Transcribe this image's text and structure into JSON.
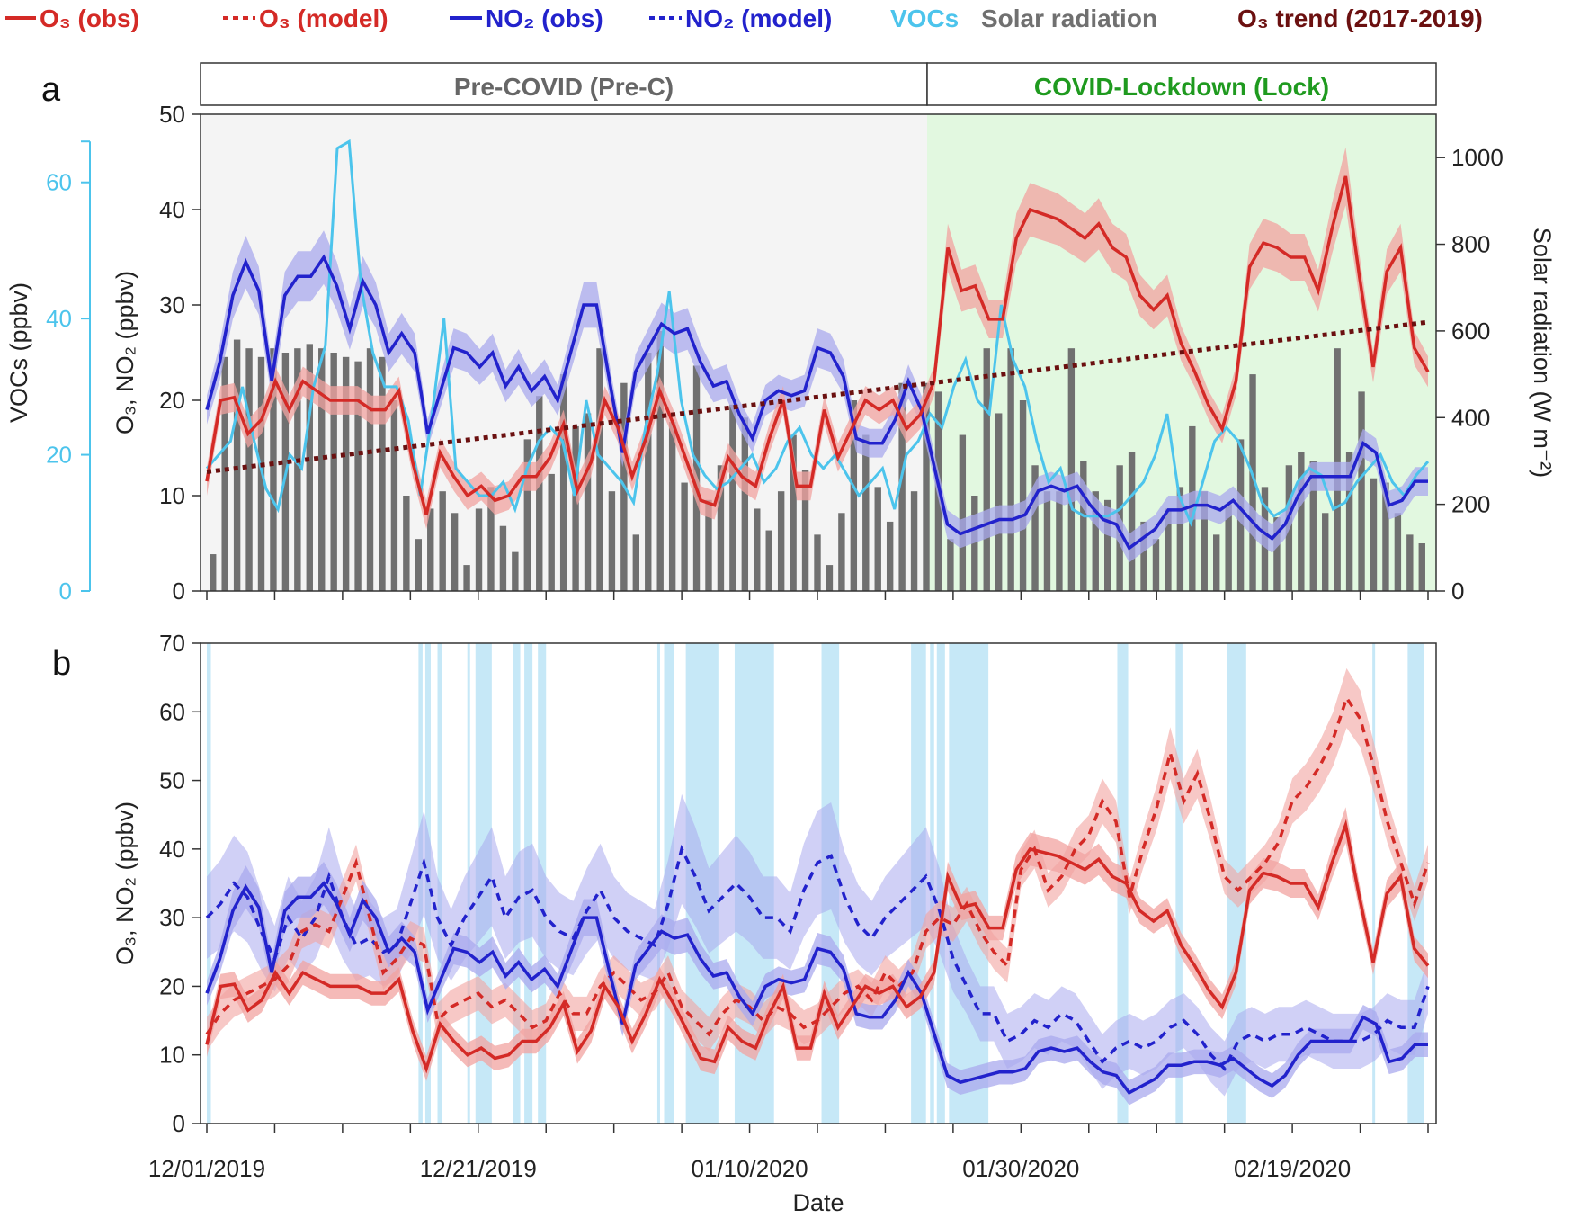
{
  "legend": {
    "o3_obs": "O₃ (obs)",
    "o3_model": "O₃ (model)",
    "no2_obs": "NO₂ (obs)",
    "no2_model": "NO₂ (model)",
    "vocs": "VOCs",
    "solar": "Solar radiation",
    "o3_trend": "O₃ trend (2017-2019)"
  },
  "colors": {
    "o3": "#d42a26",
    "o3_band": "#f2a3a0",
    "no2": "#2222cc",
    "no2_band": "#a9a9ee",
    "vocs": "#4cc4ec",
    "solar": "#707070",
    "trend": "#6b1010",
    "pre_bg": "#f4f4f4",
    "lock_bg": "#e2f8e0",
    "lock_text": "#1f9a1f",
    "pre_text": "#666666",
    "rain": "#c6e8f7"
  },
  "chart_data": [
    {
      "panel": "a",
      "type": "line",
      "periods": [
        {
          "label": "Pre-COVID (Pre-C)",
          "start_day": 0,
          "end_day": 53
        },
        {
          "label": "COVID-Lockdown (Lock)",
          "start_day": 53,
          "end_day": 90
        }
      ],
      "ylabel_left": "O₃, NO₂ (ppbv)",
      "ylim_left": [
        0,
        50
      ],
      "yticks_left": [
        0,
        10,
        20,
        30,
        40,
        50
      ],
      "ylabel_vocs": "VOCs (ppbv)",
      "ylim_vocs": [
        0,
        70
      ],
      "yticks_vocs": [
        0,
        20,
        40,
        60
      ],
      "ylabel_right": "Solar radiation (W m⁻²)",
      "ylim_right": [
        0,
        1100
      ],
      "yticks_right": [
        0,
        200,
        400,
        600,
        800,
        1000
      ],
      "o3_trend": {
        "start": [
          0,
          12.5
        ],
        "end": [
          90,
          28.2
        ]
      },
      "series": [
        {
          "name": "O3 (obs)",
          "values": [
            11.5,
            20,
            20.3,
            16.5,
            18,
            22,
            19,
            22,
            21,
            20,
            20,
            20,
            19,
            19,
            21,
            13.5,
            8,
            14.5,
            12,
            10,
            11,
            9.5,
            10,
            12,
            12,
            14,
            17.5,
            10.5,
            13.5,
            20,
            17,
            12,
            16,
            21,
            17.5,
            13.5,
            9.5,
            9,
            14,
            12,
            11,
            16,
            20,
            11,
            11,
            19,
            14,
            17,
            20,
            19,
            20,
            17,
            18.5,
            22,
            36,
            31.5,
            32,
            28.5,
            28.5,
            37,
            40,
            39.5,
            39,
            38,
            37,
            38.5,
            36,
            35,
            31,
            29.5,
            31,
            26,
            23,
            19.5,
            17,
            22,
            34,
            36.5,
            36,
            35,
            35,
            31.5,
            38,
            43.5,
            33,
            23.5,
            33.5,
            36,
            25.5,
            23
          ]
        },
        {
          "name": "NO2 (obs)",
          "values": [
            19,
            24,
            31,
            34.5,
            31.5,
            22,
            31,
            33,
            33,
            35,
            32,
            27.5,
            32.5,
            30,
            25,
            27,
            25,
            16.5,
            21,
            25.5,
            25,
            23.5,
            25,
            21.5,
            23.5,
            21,
            22.5,
            20,
            25,
            30,
            30,
            22,
            14.5,
            23,
            25.5,
            28,
            27,
            27.5,
            24,
            21.5,
            22,
            18.5,
            16,
            20,
            21,
            20.5,
            21,
            25.5,
            25,
            22.5,
            16,
            15.5,
            15.5,
            18,
            22,
            19,
            13,
            7,
            6,
            6.5,
            7,
            7.5,
            7.5,
            8,
            10.5,
            11,
            10.5,
            11,
            9,
            7.5,
            7,
            4.5,
            5.5,
            6.5,
            8.5,
            8.5,
            9,
            9,
            8.5,
            9.5,
            8,
            6.5,
            5.5,
            7,
            10,
            12,
            12,
            12,
            12,
            15.5,
            14.5,
            9,
            9.5,
            11.5,
            11.5
          ]
        },
        {
          "name": "VOCs",
          "values": [
            18,
            20,
            22,
            30,
            22,
            15,
            12,
            20,
            18,
            30,
            36,
            65,
            66,
            45,
            35,
            30,
            30,
            25,
            14,
            26,
            40,
            18,
            16,
            14,
            14,
            16,
            12,
            18,
            22,
            24,
            22,
            14,
            28,
            20,
            18,
            16,
            13,
            24,
            32,
            44,
            28,
            20,
            17,
            15,
            16,
            18,
            20,
            16,
            18,
            22,
            24,
            20,
            18,
            20,
            17,
            14,
            16,
            18,
            12,
            20,
            22,
            26,
            24,
            30,
            34,
            28,
            26,
            42,
            34,
            30,
            22,
            16,
            18,
            12,
            11,
            11,
            11,
            12,
            14,
            16,
            20,
            26,
            14,
            10,
            16,
            22,
            24,
            22,
            18,
            13,
            11,
            12,
            16,
            18,
            17,
            12,
            13,
            16,
            18,
            20,
            16,
            14,
            17,
            19
          ]
        },
        {
          "name": "Solar radiation",
          "values": [
            85,
            540,
            580,
            560,
            540,
            560,
            550,
            560,
            570,
            560,
            550,
            540,
            530,
            560,
            540,
            440,
            220,
            120,
            190,
            230,
            180,
            60,
            190,
            240,
            150,
            90,
            350,
            450,
            270,
            500,
            380,
            410,
            560,
            230,
            480,
            130,
            550,
            600,
            390,
            250,
            520,
            210,
            290,
            430,
            400,
            190,
            140,
            230,
            360,
            280,
            130,
            60,
            180,
            440,
            360,
            240,
            160,
            480,
            230,
            480,
            460,
            120,
            360,
            220,
            560,
            410,
            560,
            440,
            290,
            230,
            230,
            560,
            300,
            230,
            210,
            290,
            320,
            160,
            120,
            190,
            240,
            380,
            230,
            130,
            200,
            350,
            500,
            240,
            170,
            290,
            320,
            300,
            180,
            560,
            320,
            460,
            260,
            250,
            180,
            130,
            110
          ]
        }
      ]
    },
    {
      "panel": "b",
      "type": "line",
      "xlabel": "Date",
      "ylabel": "O₃, NO₂ (ppbv)",
      "ylim": [
        0,
        70
      ],
      "yticks": [
        0,
        10,
        20,
        30,
        40,
        50,
        60,
        70
      ],
      "xticks": [
        {
          "day": 0,
          "label": "12/01/2019"
        },
        {
          "day": 20,
          "label": "12/21/2019"
        },
        {
          "day": 40,
          "label": "01/10/2020"
        },
        {
          "day": 60,
          "label": "01/30/2020"
        },
        {
          "day": 80,
          "label": "02/19/2020"
        }
      ],
      "xlim": [
        0,
        90
      ],
      "rain_periods": [
        [
          0,
          0.3
        ],
        [
          15.6,
          15.9
        ],
        [
          16.1,
          16.5
        ],
        [
          17.0,
          17.3
        ],
        [
          19.2,
          19.4
        ],
        [
          19.8,
          21.0
        ],
        [
          22.6,
          23.1
        ],
        [
          23.4,
          24.0
        ],
        [
          24.4,
          25.0
        ],
        [
          33.2,
          33.4
        ],
        [
          33.7,
          34.4
        ],
        [
          35.3,
          37.7
        ],
        [
          38.9,
          41.8
        ],
        [
          45.3,
          46.6
        ],
        [
          51.9,
          53.0
        ],
        [
          53.3,
          53.6
        ],
        [
          53.8,
          54.4
        ],
        [
          54.7,
          57.6
        ],
        [
          67.1,
          67.9
        ],
        [
          71.4,
          71.9
        ],
        [
          75.2,
          76.6
        ],
        [
          85.9,
          86.1
        ],
        [
          88.5,
          89.7
        ]
      ],
      "series": [
        {
          "name": "O3 (obs)",
          "values": [
            11.5,
            20,
            20.3,
            16.5,
            18,
            22,
            19,
            22,
            21,
            20,
            20,
            20,
            19,
            19,
            21,
            13.5,
            8,
            14.5,
            12,
            10,
            11,
            9.5,
            10,
            12,
            12,
            14,
            17.5,
            10.5,
            13.5,
            20,
            17,
            12,
            16,
            21,
            17.5,
            13.5,
            9.5,
            9,
            14,
            12,
            11,
            16,
            20,
            11,
            11,
            19,
            14,
            17,
            20,
            19,
            20,
            17,
            18.5,
            22,
            36,
            31.5,
            32,
            28.5,
            28.5,
            37,
            40,
            39.5,
            39,
            38,
            37,
            38.5,
            36,
            35,
            31,
            29.5,
            31,
            26,
            23,
            19.5,
            17,
            22,
            34,
            36.5,
            36,
            35,
            35,
            31.5,
            38,
            43.5,
            33,
            23.5,
            33.5,
            36,
            25.5,
            23
          ]
        },
        {
          "name": "O3 (model)",
          "values": [
            13,
            16,
            18,
            19,
            20,
            21,
            23,
            28,
            29,
            28,
            33,
            38,
            30,
            22,
            24,
            27,
            26,
            15,
            17,
            18,
            19,
            17,
            18,
            16,
            14,
            15,
            19,
            16,
            16,
            20,
            22,
            20,
            18,
            19,
            22,
            17,
            15,
            13,
            16,
            18,
            17,
            15,
            17,
            16,
            14,
            15,
            17,
            19,
            20,
            18,
            22,
            20,
            22,
            28,
            30,
            29,
            32,
            28,
            25,
            23,
            37,
            40,
            34,
            36,
            40,
            42,
            47,
            44,
            33,
            40,
            46,
            54,
            47,
            51,
            44,
            36,
            34,
            36,
            38,
            41,
            47,
            49,
            52,
            56,
            62,
            59,
            52,
            44,
            38,
            32,
            38
          ]
        },
        {
          "name": "NO2 (obs)",
          "values": [
            19,
            24,
            31,
            34.5,
            31.5,
            22,
            31,
            33,
            33,
            35,
            32,
            27.5,
            32.5,
            30,
            25,
            27,
            25,
            16.5,
            21,
            25.5,
            25,
            23.5,
            25,
            21.5,
            23.5,
            21,
            22.5,
            20,
            25,
            30,
            30,
            22,
            14.5,
            23,
            25.5,
            28,
            27,
            27.5,
            24,
            21.5,
            22,
            18.5,
            16,
            20,
            21,
            20.5,
            21,
            25.5,
            25,
            22.5,
            16,
            15.5,
            15.5,
            18,
            22,
            19,
            13,
            7,
            6,
            6.5,
            7,
            7.5,
            7.5,
            8,
            10.5,
            11,
            10.5,
            11,
            9,
            7.5,
            7,
            4.5,
            5.5,
            6.5,
            8.5,
            8.5,
            9,
            9,
            8.5,
            9.5,
            8,
            6.5,
            5.5,
            7,
            10,
            12,
            12,
            12,
            12,
            15.5,
            14.5,
            9,
            9.5,
            11.5,
            11.5
          ]
        },
        {
          "name": "NO2 (model)",
          "values": [
            30,
            32,
            35,
            33,
            28,
            24,
            30,
            27,
            30,
            36,
            30,
            26,
            27,
            25,
            26,
            32,
            38,
            30,
            26,
            30,
            33,
            36,
            30,
            33,
            34,
            30,
            28,
            27,
            31,
            34,
            30,
            28,
            27,
            26,
            32,
            40,
            36,
            31,
            33,
            35,
            33,
            30,
            30,
            28,
            34,
            38,
            39,
            33,
            29,
            27,
            30,
            32,
            34,
            36,
            31,
            24,
            20,
            16,
            16,
            12,
            13,
            15,
            14,
            16,
            15,
            12,
            9,
            11,
            12,
            11,
            12,
            14,
            15,
            13,
            10,
            8,
            12,
            13,
            12,
            13,
            13,
            14,
            13,
            12,
            12,
            12,
            13,
            15,
            14,
            14,
            20
          ]
        }
      ]
    }
  ]
}
